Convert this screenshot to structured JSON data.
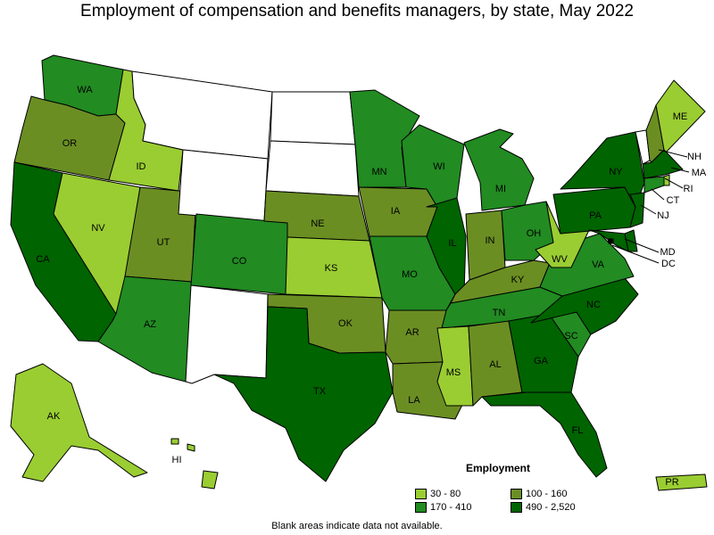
{
  "title": "Employment of compensation and benefits managers, by state, May 2022",
  "legend": {
    "title": "Employment",
    "bins": [
      {
        "label": "30 - 80",
        "color": "#9acd32"
      },
      {
        "label": "100 - 160",
        "color": "#6b8e23"
      },
      {
        "label": "170 - 410",
        "color": "#228b22"
      },
      {
        "label": "490 - 2,520",
        "color": "#006400"
      }
    ]
  },
  "footnote": "Blank areas indicate data not available.",
  "colors": {
    "blank": "#ffffff",
    "border": "#000000"
  },
  "states": [
    {
      "abbr": "WA",
      "bin": 2
    },
    {
      "abbr": "OR",
      "bin": 1
    },
    {
      "abbr": "CA",
      "bin": 3
    },
    {
      "abbr": "ID",
      "bin": 0
    },
    {
      "abbr": "NV",
      "bin": 0
    },
    {
      "abbr": "UT",
      "bin": 1
    },
    {
      "abbr": "AZ",
      "bin": 2
    },
    {
      "abbr": "MT",
      "bin": null
    },
    {
      "abbr": "WY",
      "bin": null
    },
    {
      "abbr": "CO",
      "bin": 2
    },
    {
      "abbr": "NM",
      "bin": null
    },
    {
      "abbr": "ND",
      "bin": null
    },
    {
      "abbr": "SD",
      "bin": null
    },
    {
      "abbr": "NE",
      "bin": 1
    },
    {
      "abbr": "KS",
      "bin": 0
    },
    {
      "abbr": "OK",
      "bin": 1
    },
    {
      "abbr": "TX",
      "bin": 3
    },
    {
      "abbr": "MN",
      "bin": 2
    },
    {
      "abbr": "IA",
      "bin": 1
    },
    {
      "abbr": "MO",
      "bin": 2
    },
    {
      "abbr": "AR",
      "bin": 1
    },
    {
      "abbr": "LA",
      "bin": 1
    },
    {
      "abbr": "WI",
      "bin": 2
    },
    {
      "abbr": "IL",
      "bin": 3
    },
    {
      "abbr": "MI",
      "bin": 2
    },
    {
      "abbr": "IN",
      "bin": 1
    },
    {
      "abbr": "OH",
      "bin": 2
    },
    {
      "abbr": "KY",
      "bin": 1
    },
    {
      "abbr": "TN",
      "bin": 2
    },
    {
      "abbr": "MS",
      "bin": 0
    },
    {
      "abbr": "AL",
      "bin": 1
    },
    {
      "abbr": "GA",
      "bin": 3
    },
    {
      "abbr": "FL",
      "bin": 3
    },
    {
      "abbr": "SC",
      "bin": 2
    },
    {
      "abbr": "NC",
      "bin": 3
    },
    {
      "abbr": "VA",
      "bin": 2
    },
    {
      "abbr": "WV",
      "bin": 0
    },
    {
      "abbr": "PA",
      "bin": 3
    },
    {
      "abbr": "NY",
      "bin": 3
    },
    {
      "abbr": "VT",
      "bin": null
    },
    {
      "abbr": "NH",
      "bin": 1
    },
    {
      "abbr": "ME",
      "bin": 0
    },
    {
      "abbr": "MA",
      "bin": 3
    },
    {
      "abbr": "RI",
      "bin": 0
    },
    {
      "abbr": "CT",
      "bin": 2
    },
    {
      "abbr": "NJ",
      "bin": 3
    },
    {
      "abbr": "DE",
      "bin": 3
    },
    {
      "abbr": "MD",
      "bin": 3
    },
    {
      "abbr": "DC",
      "bin": 3
    },
    {
      "abbr": "AK",
      "bin": 0
    },
    {
      "abbr": "HI",
      "bin": 0
    },
    {
      "abbr": "PR",
      "bin": 0
    }
  ],
  "labels": [
    "WA",
    "OR",
    "CA",
    "ID",
    "NV",
    "UT",
    "AZ",
    "CO",
    "NE",
    "KS",
    "OK",
    "TX",
    "MN",
    "IA",
    "MO",
    "AR",
    "LA",
    "WI",
    "IL",
    "MI",
    "IN",
    "OH",
    "KY",
    "TN",
    "MS",
    "AL",
    "GA",
    "FL",
    "SC",
    "NC",
    "VA",
    "WV",
    "PA",
    "NY",
    "ME",
    "AK",
    "PR",
    "NH",
    "MA",
    "RI",
    "CT",
    "NJ",
    "MD",
    "DC",
    "HI"
  ]
}
